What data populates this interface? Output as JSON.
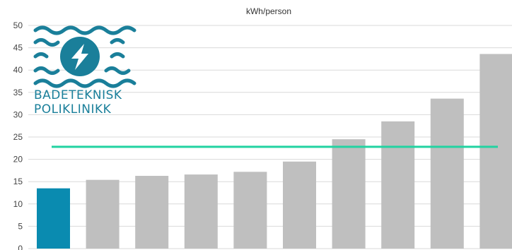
{
  "chart_data": {
    "type": "bar",
    "title": "kWh/person",
    "xlabel": "",
    "ylabel": "",
    "ylim": [
      0,
      50
    ],
    "yticks": [
      0,
      5,
      10,
      15,
      20,
      25,
      30,
      35,
      40,
      45,
      50
    ],
    "grid": true,
    "categories": [
      "",
      "",
      "",
      "",
      "",
      "",
      "",
      "",
      "",
      ""
    ],
    "values": [
      13.5,
      15.4,
      16.3,
      16.6,
      17.2,
      19.5,
      24.5,
      28.5,
      33.6,
      43.6
    ],
    "highlight_index": 0,
    "reference_line": 22.8,
    "colors": {
      "highlight": "#0a8bb0",
      "bar": "#bfbfbf",
      "reference_line": "#22d3a1",
      "grid": "#d9d9d9",
      "logo": "#1a7f9a"
    }
  },
  "logo": {
    "line1": "BADETEKNISK",
    "line2": "POLIKLINIKK",
    "icon": "lightning-bolt-icon"
  }
}
